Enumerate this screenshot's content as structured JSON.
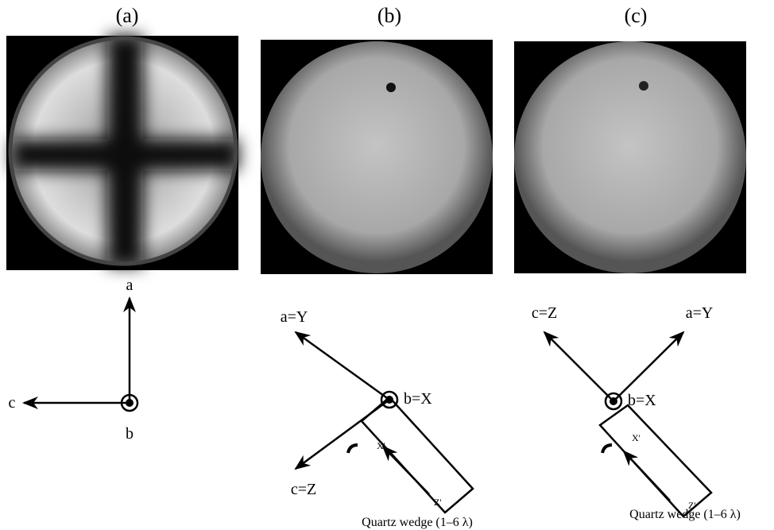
{
  "panels": [
    {
      "label": "(a)",
      "axes": {
        "a": "a",
        "c": "c",
        "b": "b"
      }
    },
    {
      "label": "(b)",
      "axes": {
        "a": "a=Y",
        "c": "c=Z",
        "b": "b=X"
      },
      "wedge": {
        "x": "X'",
        "z": "Z'",
        "caption": "Quartz wedge (1–6 λ)"
      }
    },
    {
      "label": "(c)",
      "axes": {
        "a": "a=Y",
        "c": "c=Z",
        "b": "b=X"
      },
      "wedge": {
        "x": "X'",
        "z": "Z'",
        "caption": "Quartz wedge (1–6 λ)"
      }
    }
  ]
}
